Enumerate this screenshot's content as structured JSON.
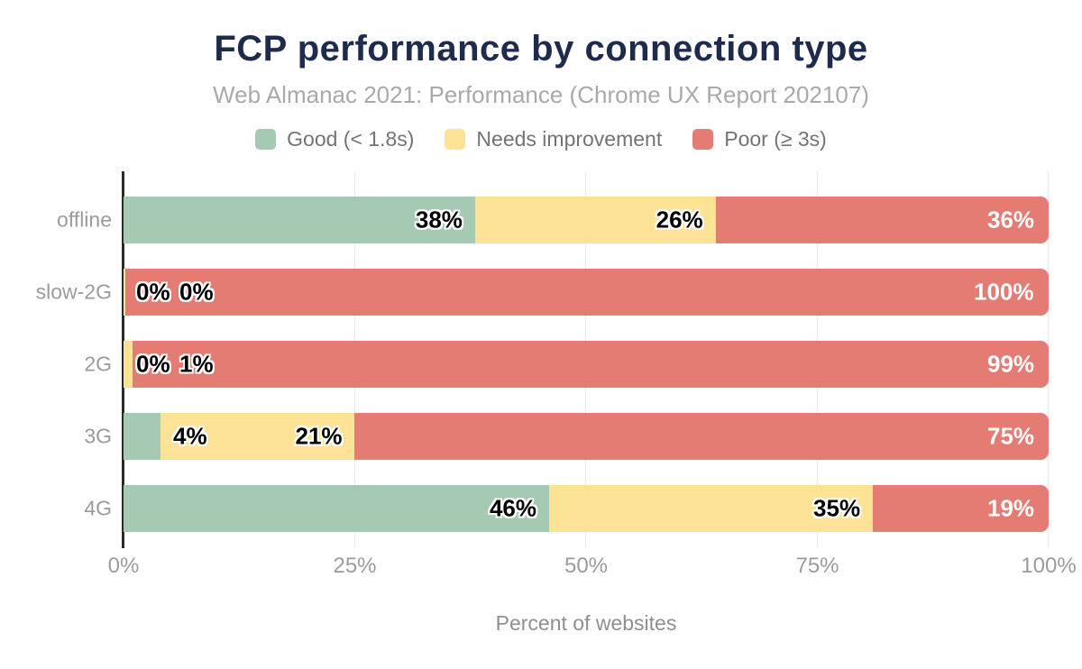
{
  "title": "FCP performance by connection type",
  "subtitle": "Web Almanac 2021: Performance (Chrome UX Report 202107)",
  "legend": [
    {
      "label": "Good (< 1.8s)",
      "color": "#a6c9b4"
    },
    {
      "label": "Needs improvement",
      "color": "#fbe295"
    },
    {
      "label": "Poor (≥ 3s)",
      "color": "#e57c73"
    }
  ],
  "chart_data": {
    "type": "bar",
    "orientation": "horizontal",
    "stacked": true,
    "title": "FCP performance by connection type",
    "subtitle": "Web Almanac 2021: Performance (Chrome UX Report 202107)",
    "categories": [
      "offline",
      "slow-2G",
      "2G",
      "3G",
      "4G"
    ],
    "series": [
      {
        "name": "Good (< 1.8s)",
        "color": "#a6c9b4",
        "values": [
          38,
          0,
          0,
          4,
          46
        ]
      },
      {
        "name": "Needs improvement",
        "color": "#fbe295",
        "values": [
          26,
          0,
          1,
          21,
          35
        ]
      },
      {
        "name": "Poor (≥ 3s)",
        "color": "#e57c73",
        "values": [
          36,
          100,
          99,
          75,
          19
        ]
      }
    ],
    "value_labels": [
      [
        "38%",
        "26%",
        "36%"
      ],
      [
        "0%",
        "0%",
        "100%"
      ],
      [
        "0%",
        "1%",
        "99%"
      ],
      [
        "4%",
        "21%",
        "75%"
      ],
      [
        "46%",
        "35%",
        "19%"
      ]
    ],
    "xlabel": "Percent of websites",
    "x_ticks": [
      "0%",
      "25%",
      "50%",
      "75%",
      "100%"
    ],
    "xlim": [
      0,
      100
    ],
    "grid": true,
    "legend_position": "top"
  },
  "colors": {
    "title": "#1e2b4d",
    "subtitle_text": "#a9a9a9",
    "axis_text": "#9b9b9b",
    "gridline": "#e9e9e9",
    "axis_line": "#2b2b2b",
    "label_on_poor": "#ffffff",
    "label_on_light": "#000000"
  }
}
